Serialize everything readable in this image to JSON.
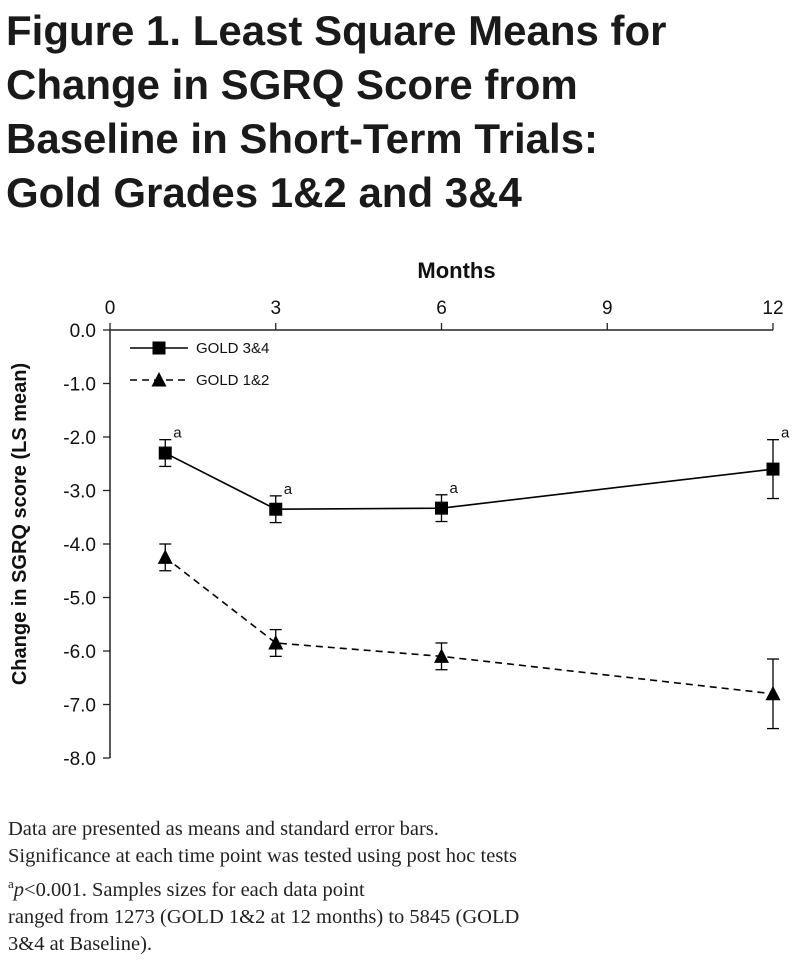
{
  "title_lines": [
    "Figure 1. Least Square Means for",
    "Change in SGRQ Score from",
    "Baseline in Short-Term Trials:",
    "Gold Grades 1&2 and 3&4"
  ],
  "chart_data": {
    "type": "line",
    "xlabel": "Months",
    "ylabel": "Change in SGRQ score (LS mean)",
    "xlim": [
      0,
      12
    ],
    "ylim": [
      -8,
      0
    ],
    "x_ticks": [
      "0",
      "3",
      "6",
      "9",
      "12"
    ],
    "y_ticks": [
      "0.0",
      "-1.0",
      "-2.0",
      "-3.0",
      "-4.0",
      "-5.0",
      "-6.0",
      "-7.0",
      "-8.0"
    ],
    "x_axis_position": "top",
    "legend_position": "top-left",
    "grid": false,
    "series": [
      {
        "name": "GOLD 3&4",
        "marker": "square",
        "line_style": "solid",
        "x": [
          1,
          3,
          6,
          12
        ],
        "y": [
          -2.3,
          -3.35,
          -3.33,
          -2.6
        ],
        "error": [
          0.25,
          0.25,
          0.25,
          0.55
        ],
        "annotations": [
          "a",
          "a",
          "a",
          "a"
        ]
      },
      {
        "name": "GOLD 1&2",
        "marker": "triangle",
        "line_style": "dashed",
        "x": [
          1,
          3,
          6,
          12
        ],
        "y": [
          -4.25,
          -5.85,
          -6.1,
          -6.8
        ],
        "error": [
          0.25,
          0.25,
          0.25,
          0.65
        ],
        "annotations": []
      }
    ]
  },
  "caption": {
    "line1": "Data are presented as means and standard error bars.",
    "line2": "Significance at each time point was tested using post hoc tests",
    "line3_sup": "a",
    "line3_italic": "p",
    "line3_rest": "<0.001.  Samples sizes for each data point",
    "line4": "ranged from 1273 (GOLD 1&2 at 12 months) to 5845 (GOLD",
    "line5": "3&4 at Baseline)."
  }
}
